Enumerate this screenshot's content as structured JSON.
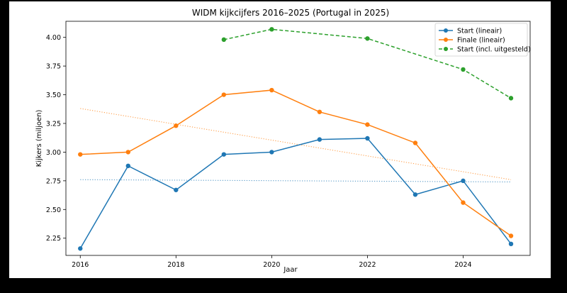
{
  "chart_data": {
    "type": "line",
    "title": "WIDM kijkcijfers 2016–2025 (Portugal in 2025)",
    "xlabel": "Jaar",
    "ylabel": "Kijkers (miljoen)",
    "xlim": [
      2015.7,
      2025.4
    ],
    "ylim": [
      2.1,
      4.14
    ],
    "xticks": [
      2016,
      2018,
      2020,
      2022,
      2024
    ],
    "xtick_labels": [
      "2016",
      "2018",
      "2020",
      "2022",
      "2024"
    ],
    "yticks": [
      2.25,
      2.5,
      2.75,
      3.0,
      3.25,
      3.5,
      3.75,
      4.0
    ],
    "ytick_labels": [
      "2.25",
      "2.50",
      "2.75",
      "3.00",
      "3.25",
      "3.50",
      "3.75",
      "4.00"
    ],
    "legend_position": "top-right",
    "series": [
      {
        "name": "Start (lineair)",
        "color": "#1f77b4",
        "style": "solid",
        "x": [
          2016,
          2017,
          2018,
          2019,
          2020,
          2021,
          2022,
          2023,
          2024,
          2025
        ],
        "values": [
          2.16,
          2.88,
          2.67,
          2.98,
          3.0,
          3.11,
          3.12,
          2.63,
          2.75,
          2.2
        ]
      },
      {
        "name": "Finale (lineair)",
        "color": "#ff7f0e",
        "style": "solid",
        "x": [
          2016,
          2017,
          2018,
          2019,
          2020,
          2021,
          2022,
          2023,
          2024,
          2025
        ],
        "values": [
          2.98,
          3.0,
          3.23,
          3.5,
          3.54,
          3.35,
          3.24,
          3.08,
          2.56,
          2.27
        ]
      },
      {
        "name": "Start (incl. uitgesteld)",
        "color": "#2ca02c",
        "style": "dashed",
        "x": [
          2019,
          2020,
          2022,
          2024,
          2025
        ],
        "values": [
          3.98,
          4.07,
          3.99,
          3.72,
          3.47
        ]
      }
    ],
    "trendlines": [
      {
        "series": "Start (lineair)",
        "color": "#1f77b4",
        "x": [
          2016,
          2025
        ],
        "values": [
          2.76,
          2.74
        ]
      },
      {
        "series": "Finale (lineair)",
        "color": "#ff7f0e",
        "x": [
          2016,
          2025
        ],
        "values": [
          3.38,
          2.76
        ]
      }
    ]
  }
}
